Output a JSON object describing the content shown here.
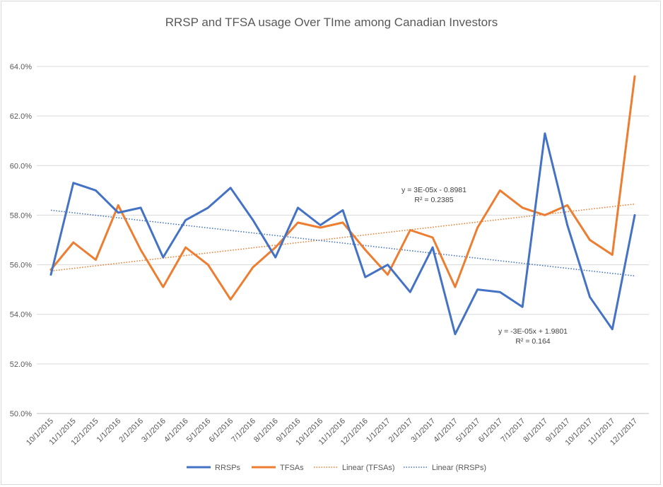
{
  "chart_data": {
    "type": "line",
    "title": "RRSP and TFSA usage Over TIme among Canadian Investors",
    "xlabel": "",
    "ylabel": "",
    "ylim": [
      50.0,
      64.0
    ],
    "y_ticks": [
      "64.0%",
      "62.0%",
      "60.0%",
      "58.0%",
      "56.0%",
      "54.0%",
      "52.0%",
      "50.0%"
    ],
    "y_tick_values": [
      64,
      62,
      60,
      58,
      56,
      54,
      52,
      50
    ],
    "grid": "horizontal",
    "legend_position": "bottom",
    "categories": [
      "10/1/2015",
      "11/1/2015",
      "12/1/2015",
      "1/1/2016",
      "2/1/2016",
      "3/1/2016",
      "4/1/2016",
      "5/1/2016",
      "6/1/2016",
      "7/1/2016",
      "8/1/2016",
      "9/1/2016",
      "10/1/2016",
      "11/1/2016",
      "12/1/2016",
      "1/1/2017",
      "2/1/2017",
      "3/1/2017",
      "4/1/2017",
      "5/1/2017",
      "6/1/2017",
      "7/1/2017",
      "8/1/2017",
      "9/1/2017",
      "10/1/2017",
      "11/1/2017",
      "12/1/2017"
    ],
    "series": [
      {
        "name": "RRSPs",
        "color": "#4472c4",
        "values": [
          55.6,
          59.3,
          59.0,
          58.1,
          58.3,
          56.3,
          57.8,
          58.3,
          59.1,
          57.8,
          56.3,
          58.3,
          57.6,
          58.2,
          55.5,
          56.0,
          54.9,
          56.7,
          53.2,
          55.0,
          54.9,
          54.3,
          61.3,
          57.6,
          54.7,
          53.4,
          58.0
        ]
      },
      {
        "name": "TFSAs",
        "color": "#ed7d31",
        "values": [
          55.8,
          56.9,
          56.2,
          58.4,
          56.6,
          55.1,
          56.7,
          56.0,
          54.6,
          55.9,
          56.7,
          57.7,
          57.5,
          57.7,
          56.6,
          55.6,
          57.4,
          57.1,
          55.1,
          57.5,
          59.0,
          58.3,
          58.0,
          58.4,
          57.0,
          56.4,
          63.6
        ]
      }
    ],
    "trendlines": [
      {
        "name": "Linear (TFSAs)",
        "color": "#ed7d31",
        "start": 55.75,
        "end": 58.45,
        "equation": "y = 3E-05x - 0.8981",
        "r_squared": "R² = 0.2385"
      },
      {
        "name": "Linear (RRSPs)",
        "color": "#4472c4",
        "start": 58.2,
        "end": 55.55,
        "equation": "y = -3E-05x + 1.9801",
        "r_squared": "R² = 0.164"
      }
    ]
  }
}
